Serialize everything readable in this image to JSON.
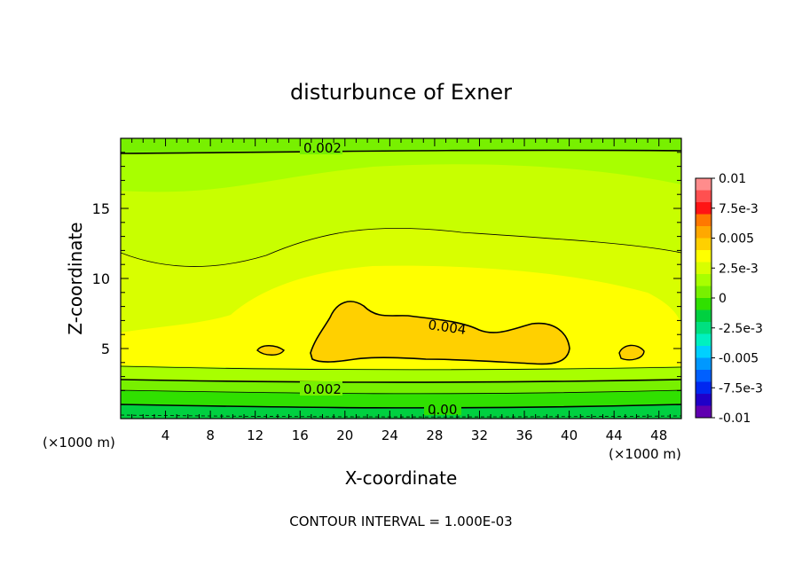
{
  "chart_data": {
    "type": "contour",
    "title": "disturbunce of Exner",
    "xlabel": "X-coordinate",
    "ylabel": "Z-coordinate",
    "x_unit_left": "(×1000 m)",
    "x_unit_right": "(×1000 m)",
    "footer": "CONTOUR INTERVAL = 1.000E-03",
    "xlim": [
      0,
      50
    ],
    "ylim": [
      0,
      20
    ],
    "x_ticks": [
      "4",
      "8",
      "12",
      "16",
      "20",
      "24",
      "28",
      "32",
      "36",
      "40",
      "44",
      "48"
    ],
    "y_ticks": [
      "5",
      "10",
      "15"
    ],
    "contour_labels": [
      "0.002",
      "0.004",
      "0.002",
      "0.00"
    ],
    "colorbar": {
      "ticks": [
        "0.01",
        "7.5e-3",
        "0.005",
        "2.5e-3",
        "0",
        "-2.5e-3",
        "-0.005",
        "-7.5e-3",
        "-0.01"
      ],
      "colors": [
        "#ff8c8c",
        "#ff5050",
        "#ff1414",
        "#ff7800",
        "#ffa800",
        "#ffd000",
        "#ffff00",
        "#d8ff00",
        "#a8ff00",
        "#78f000",
        "#30e000",
        "#00d040",
        "#00e080",
        "#00f0c0",
        "#00d0ff",
        "#0098ff",
        "#0060ff",
        "#0028f0",
        "#2000c8",
        "#6000b0"
      ]
    },
    "bands": [
      {
        "range": [
          0.004,
          0.005
        ],
        "region": "x≈17–40, z≈4–8.5"
      },
      {
        "range": [
          0.003,
          0.004
        ],
        "region": "x≈5–48, z≈3.5–10"
      },
      {
        "range": [
          0.002,
          0.003
        ],
        "region": "mid layer"
      },
      {
        "range": [
          0.001,
          0.002
        ],
        "region": "near surface / top"
      },
      {
        "range": [
          0.0,
          0.001
        ],
        "region": "surface layer"
      }
    ]
  }
}
